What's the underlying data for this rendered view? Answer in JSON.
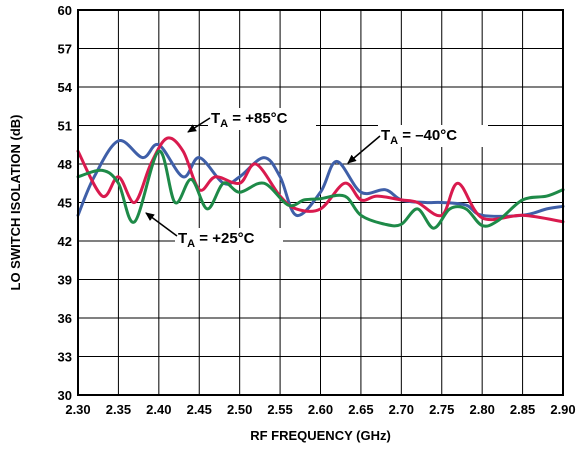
{
  "chart_data": {
    "type": "line",
    "xlabel": "RF FREQUENCY (GHz)",
    "ylabel": "LO SWITCH ISOLATION (dB)",
    "xlim": [
      2.3,
      2.9
    ],
    "ylim": [
      30,
      60
    ],
    "grid": true,
    "x_ticks": [
      "2.30",
      "2.35",
      "2.40",
      "2.45",
      "2.50",
      "2.55",
      "2.60",
      "2.65",
      "2.70",
      "2.75",
      "2.80",
      "2.85",
      "2.90"
    ],
    "y_ticks": [
      "30",
      "33",
      "36",
      "39",
      "42",
      "45",
      "48",
      "51",
      "54",
      "57",
      "60"
    ],
    "series": [
      {
        "color": "#3f5fa8",
        "x": [
          2.3,
          2.32,
          2.35,
          2.38,
          2.4,
          2.43,
          2.45,
          2.48,
          2.5,
          2.53,
          2.55,
          2.57,
          2.6,
          2.62,
          2.65,
          2.68,
          2.7,
          2.73,
          2.75,
          2.78,
          2.8,
          2.85,
          2.88,
          2.9
        ],
        "y": [
          44.0,
          47.0,
          49.8,
          48.5,
          49.5,
          47.0,
          48.5,
          46.5,
          47.0,
          48.5,
          47.0,
          44.0,
          45.8,
          48.2,
          45.8,
          46.0,
          45.2,
          45.0,
          45.0,
          44.8,
          44.0,
          44.0,
          44.5,
          44.7
        ]
      },
      {
        "color": "#d91a4e",
        "x": [
          2.3,
          2.33,
          2.35,
          2.37,
          2.39,
          2.41,
          2.43,
          2.45,
          2.47,
          2.5,
          2.52,
          2.55,
          2.57,
          2.6,
          2.63,
          2.65,
          2.67,
          2.7,
          2.72,
          2.75,
          2.77,
          2.8,
          2.85,
          2.9
        ],
        "y": [
          49.0,
          45.5,
          47.0,
          45.0,
          48.0,
          50.0,
          49.0,
          46.0,
          47.0,
          46.5,
          48.0,
          45.5,
          44.5,
          44.5,
          46.5,
          45.2,
          45.5,
          45.2,
          45.0,
          44.0,
          46.5,
          43.8,
          44.0,
          43.5
        ]
      },
      {
        "color": "#1e8a48",
        "x": [
          2.3,
          2.33,
          2.35,
          2.37,
          2.4,
          2.42,
          2.44,
          2.46,
          2.48,
          2.5,
          2.53,
          2.56,
          2.58,
          2.6,
          2.63,
          2.65,
          2.68,
          2.7,
          2.72,
          2.74,
          2.76,
          2.78,
          2.8,
          2.82,
          2.85,
          2.88,
          2.9
        ],
        "y": [
          47.0,
          47.5,
          46.5,
          43.5,
          49.0,
          45.0,
          46.8,
          44.5,
          46.5,
          45.8,
          46.5,
          44.8,
          45.2,
          45.3,
          45.5,
          44.0,
          43.3,
          43.3,
          44.5,
          43.0,
          44.5,
          44.5,
          43.2,
          43.6,
          45.2,
          45.5,
          46.0
        ]
      }
    ],
    "annotations": [
      {
        "prefix": "T",
        "sub": "A",
        "suffix": " = +85°C"
      },
      {
        "prefix": "T",
        "sub": "A",
        "suffix": " = –40°C"
      },
      {
        "prefix": "T",
        "sub": "A",
        "suffix": " = +25°C"
      }
    ]
  }
}
